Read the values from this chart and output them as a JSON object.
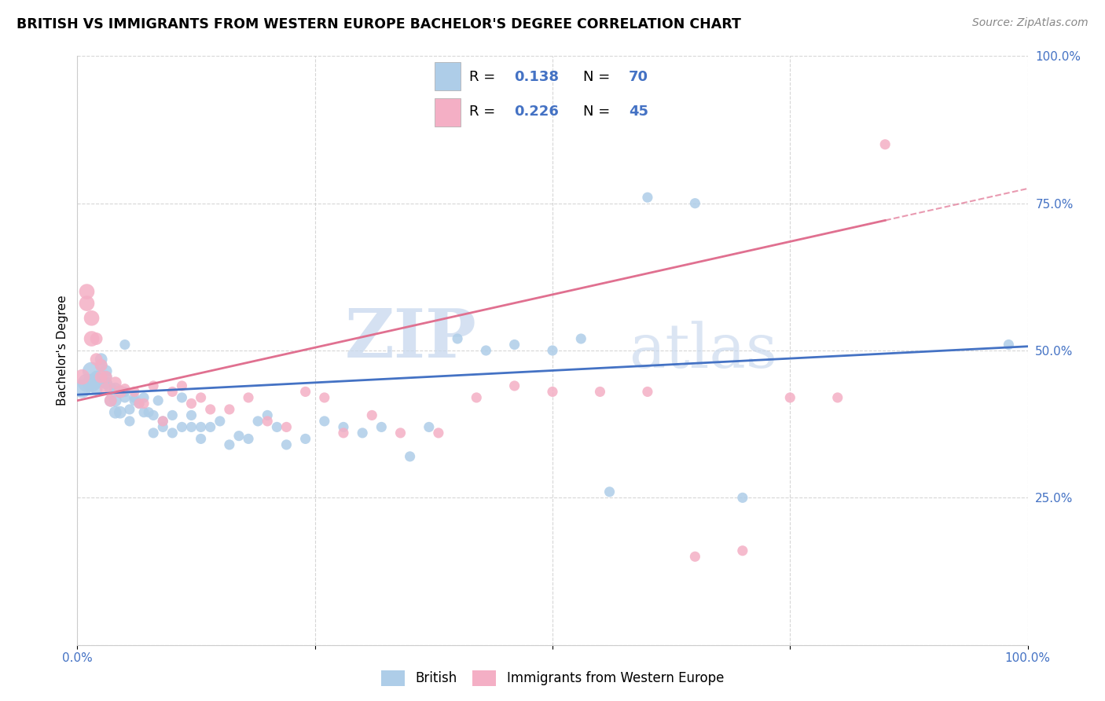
{
  "title": "BRITISH VS IMMIGRANTS FROM WESTERN EUROPE BACHELOR'S DEGREE CORRELATION CHART",
  "source": "Source: ZipAtlas.com",
  "ylabel": "Bachelor's Degree",
  "blue_label": "British",
  "pink_label": "Immigrants from Western Europe",
  "blue_R": "0.138",
  "blue_N": "70",
  "pink_R": "0.226",
  "pink_N": "45",
  "blue_color": "#aecde8",
  "pink_color": "#f4afc5",
  "blue_line_color": "#4472c4",
  "pink_line_color": "#e07090",
  "watermark_zip": "ZIP",
  "watermark_atlas": "atlas",
  "blue_x": [
    0.005,
    0.01,
    0.015,
    0.015,
    0.02,
    0.02,
    0.02,
    0.025,
    0.025,
    0.03,
    0.03,
    0.03,
    0.03,
    0.035,
    0.035,
    0.04,
    0.04,
    0.04,
    0.045,
    0.045,
    0.05,
    0.05,
    0.05,
    0.055,
    0.055,
    0.06,
    0.06,
    0.065,
    0.07,
    0.07,
    0.075,
    0.08,
    0.08,
    0.085,
    0.09,
    0.09,
    0.1,
    0.1,
    0.11,
    0.11,
    0.12,
    0.12,
    0.13,
    0.13,
    0.14,
    0.15,
    0.16,
    0.17,
    0.18,
    0.19,
    0.2,
    0.21,
    0.22,
    0.24,
    0.26,
    0.28,
    0.3,
    0.32,
    0.35,
    0.37,
    0.4,
    0.43,
    0.46,
    0.5,
    0.53,
    0.56,
    0.6,
    0.65,
    0.7,
    0.98
  ],
  "blue_y": [
    0.435,
    0.445,
    0.445,
    0.465,
    0.435,
    0.445,
    0.455,
    0.475,
    0.485,
    0.445,
    0.455,
    0.445,
    0.465,
    0.415,
    0.435,
    0.395,
    0.415,
    0.435,
    0.395,
    0.43,
    0.51,
    0.42,
    0.43,
    0.38,
    0.4,
    0.415,
    0.42,
    0.41,
    0.395,
    0.42,
    0.395,
    0.36,
    0.39,
    0.415,
    0.38,
    0.37,
    0.36,
    0.39,
    0.37,
    0.42,
    0.37,
    0.39,
    0.37,
    0.35,
    0.37,
    0.38,
    0.34,
    0.355,
    0.35,
    0.38,
    0.39,
    0.37,
    0.34,
    0.35,
    0.38,
    0.37,
    0.36,
    0.37,
    0.32,
    0.37,
    0.52,
    0.5,
    0.51,
    0.5,
    0.52,
    0.26,
    0.76,
    0.75,
    0.25,
    0.51
  ],
  "pink_x": [
    0.005,
    0.01,
    0.01,
    0.015,
    0.015,
    0.02,
    0.02,
    0.025,
    0.025,
    0.03,
    0.03,
    0.035,
    0.04,
    0.045,
    0.05,
    0.06,
    0.065,
    0.07,
    0.08,
    0.09,
    0.1,
    0.11,
    0.12,
    0.13,
    0.14,
    0.16,
    0.18,
    0.2,
    0.22,
    0.24,
    0.26,
    0.28,
    0.31,
    0.34,
    0.38,
    0.42,
    0.46,
    0.5,
    0.55,
    0.6,
    0.65,
    0.7,
    0.75,
    0.8,
    0.85
  ],
  "pink_y": [
    0.455,
    0.6,
    0.58,
    0.555,
    0.52,
    0.52,
    0.485,
    0.455,
    0.475,
    0.455,
    0.435,
    0.415,
    0.445,
    0.43,
    0.435,
    0.43,
    0.41,
    0.41,
    0.44,
    0.38,
    0.43,
    0.44,
    0.41,
    0.42,
    0.4,
    0.4,
    0.42,
    0.38,
    0.37,
    0.43,
    0.42,
    0.36,
    0.39,
    0.36,
    0.36,
    0.42,
    0.44,
    0.43,
    0.43,
    0.43,
    0.15,
    0.16,
    0.42,
    0.42,
    0.85
  ],
  "blue_intercept": 0.425,
  "blue_slope": 0.082,
  "pink_intercept": 0.415,
  "pink_slope": 0.36
}
